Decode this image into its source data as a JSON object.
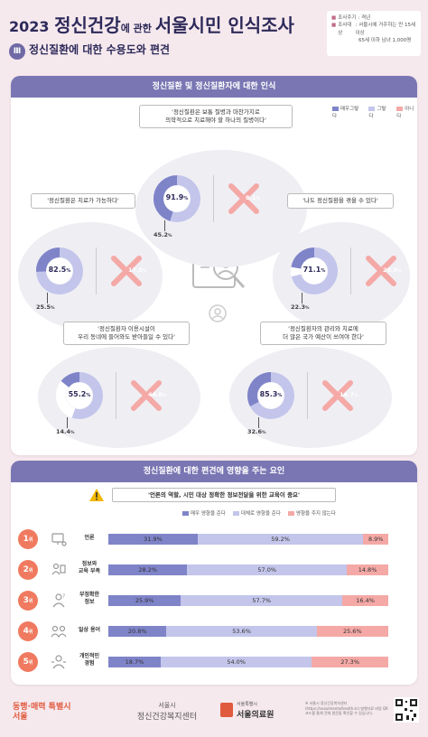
{
  "header": {
    "year": "2023",
    "title_main": "정신건강",
    "title_mid": "에 관한 ",
    "title_end": "서울시민 인식조사",
    "section_num": "Ⅲ",
    "subtitle": "정신질환에 대한 수용도와 편견",
    "survey_info": [
      {
        "label": "조사주기",
        "value": ": 격년"
      },
      {
        "label": "조사대상",
        "value": ": 서울시에 거주하는 만 15세 이상"
      },
      {
        "label": "",
        "value": "65세 이하 남녀 1,000명"
      }
    ]
  },
  "section1": {
    "title": "정신질환 및 정신질환자에 대한 인식",
    "legend": [
      "매우그렇다",
      "그렇다",
      "아니다"
    ]
  },
  "section2": {
    "title": "정신질환에 대한 편견에 영향을 주는 요인",
    "callout": "'언론의 역할, 시민 대상 정확한 정보전달을 위한 교육이 중요'",
    "legend": [
      "매우 영향을 준다",
      "대체로 영향을 준다",
      "영향을 주지 않는다"
    ]
  },
  "colors": {
    "agree_strong": "#7f83c8",
    "agree": "#c3c6ea",
    "disagree": "#f4a9a6",
    "header_purple": "#7a76b3",
    "rank": "#f07a5f"
  },
  "chart_data": [
    {
      "type": "pie",
      "title": "정신질환 및 정신질환자에 대한 인식",
      "items": [
        {
          "statement": "'정신질환은 보통 질병과 마찬가지로\n의학적으로 치료해야 할 하나의 질병이다'",
          "agree_total": 91.9,
          "strongly_agree": 45.2,
          "disagree": 8.1
        },
        {
          "statement": "'정신질환은 치료가 가능하다'",
          "agree_total": 82.5,
          "strongly_agree": 25.5,
          "disagree": 17.5
        },
        {
          "statement": "'나도 정신질환을 겪을 수 있다'",
          "agree_total": 71.1,
          "strongly_agree": 22.3,
          "disagree": 28.9
        },
        {
          "statement": "'정신질환자 이용시설이\n우리 동네에 들어와도 받아들일 수 있다'",
          "agree_total": 55.2,
          "strongly_agree": 14.4,
          "disagree": 44.8
        },
        {
          "statement": "'정신질환자의 관리와 치료에\n더 많은 국가 예산이 쓰여야 한다'",
          "agree_total": 85.3,
          "strongly_agree": 32.6,
          "disagree": 14.7
        }
      ],
      "unit": "%"
    },
    {
      "type": "bar",
      "title": "정신질환에 대한 편견에 영향을 주는 요인",
      "categories": [
        "언론",
        "정보와\n교육 부족",
        "부정확한\n정보",
        "일상 용어",
        "개인적인\n경험"
      ],
      "ranks": [
        "1",
        "2",
        "3",
        "4",
        "5"
      ],
      "rank_suffix": "위",
      "series": [
        {
          "name": "매우 영향을 준다",
          "values": [
            31.9,
            28.2,
            25.9,
            20.8,
            18.7
          ]
        },
        {
          "name": "대체로 영향을 준다",
          "values": [
            59.2,
            57.0,
            57.7,
            53.6,
            54.0
          ]
        },
        {
          "name": "영향을 주지 않는다",
          "values": [
            8.9,
            14.8,
            16.4,
            25.6,
            27.3
          ]
        }
      ],
      "unit": "%",
      "stacked": true
    }
  ],
  "footer": {
    "logo1": "동행·매력 특별시 서울",
    "logo2_top": "서울시",
    "logo2_bottom": "정신건강복지센터",
    "logo3_small": "서울특별시",
    "logo3": "서울의료원",
    "note": "※ 서울시 정신건강복지센터 (https://seoulmentalhealth.kr) 발행자료 바탕 QR 코드를 통해 전체 원문을 확인할 수 있습니다."
  }
}
